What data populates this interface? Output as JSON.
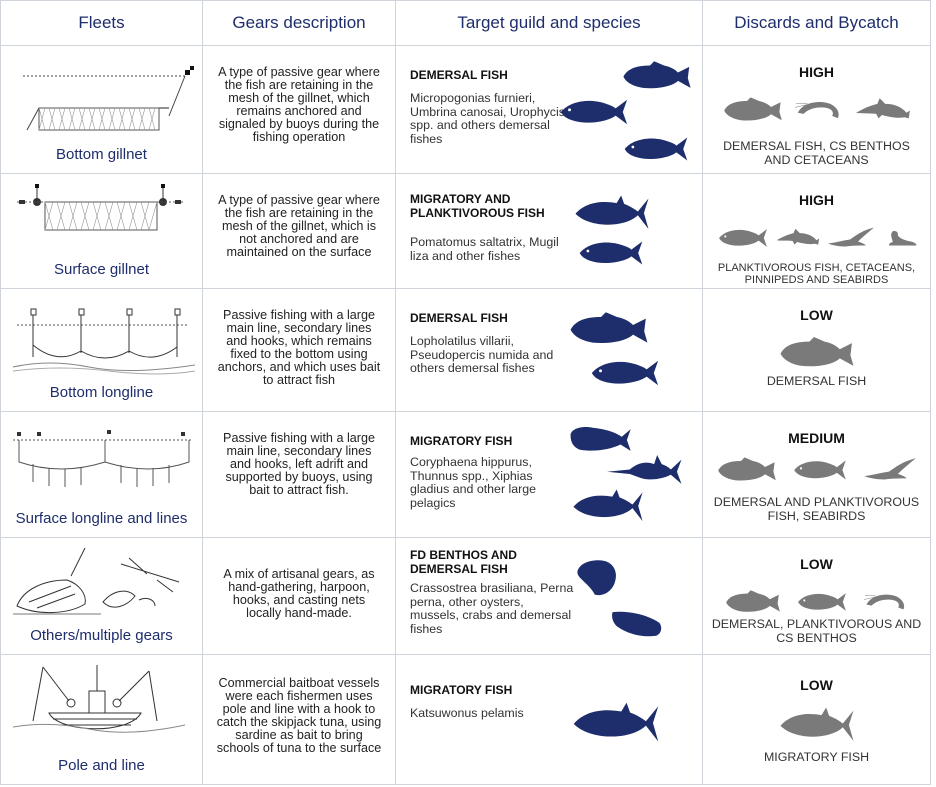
{
  "headers": [
    "Fleets",
    "Gears description",
    "Target guild and species",
    "Discards and Bycatch"
  ],
  "colors": {
    "header_text": "#1e2d6b",
    "target_fish": "#1e2d6b",
    "bycatch_icon": "#7a7a7a",
    "grid": "#cfd3da"
  },
  "rows": [
    {
      "fleet": "Bottom gillnet",
      "fleet_icon": "bottom-gillnet-illustration",
      "gear": "A type of passive gear where the fish are retaining in the mesh of the gillnet, which remains anchored and signaled by buoys during the fishing operation",
      "guild": "DEMERSAL FISH",
      "species": "Micropogonias furnieri, Umbrina canosai, Urophycis spp. and others demersal fishes",
      "level": "HIGH",
      "bycatch_text": "DEMERSAL FISH, CS BENTHOS AND CETACEANS",
      "bycatch_icons": [
        "grouper-icon",
        "shrimp-icon",
        "dolphin-icon"
      ]
    },
    {
      "fleet": "Surface gillnet",
      "fleet_icon": "surface-gillnet-illustration",
      "gear": "A type of passive gear where the fish are retaining in the mesh of the gillnet, which is not anchored and are maintained on the surface",
      "guild": "MIGRATORY AND PLANKTIVOROUS FISH",
      "species": "Pomatomus saltatrix, Mugil liza and other fishes",
      "level": "HIGH",
      "bycatch_text": "PLANKTIVOROUS FISH, CETACEANS, PINNIPEDS AND SEABIRDS",
      "bycatch_icons": [
        "fish-icon",
        "dolphin-icon",
        "seabird-icon",
        "sea-lion-icon"
      ]
    },
    {
      "fleet": "Bottom longline",
      "fleet_icon": "bottom-longline-illustration",
      "gear": "Passive fishing with a large main line, secondary lines and hooks, which remains fixed to the bottom using anchors, and which uses bait to attract fish",
      "guild": "DEMERSAL FISH",
      "species": "Lopholatilus villarii, Pseudopercis numida and others demersal fishes",
      "level": "LOW",
      "bycatch_text": "DEMERSAL FISH",
      "bycatch_icons": [
        "grouper-icon"
      ]
    },
    {
      "fleet": "Surface longline and lines",
      "fleet_icon": "surface-longline-illustration",
      "gear": "Passive fishing with a large main line, secondary lines and hooks, left adrift and supported by buoys, using bait to attract fish.",
      "guild": "MIGRATORY FISH",
      "species": "Coryphaena hippurus, Thunnus spp., Xiphias gladius and other large pelagics",
      "level": "MEDIUM",
      "bycatch_text": "DEMERSAL AND PLANKTIVOROUS FISH, SEABIRDS",
      "bycatch_icons": [
        "grouper-icon",
        "fish-icon",
        "seabird-icon"
      ]
    },
    {
      "fleet": "Others/multiple gears",
      "fleet_icon": "artisanal-gears-illustration",
      "gear": "A mix of artisanal gears, as hand-gathering, harpoon, hooks,  and casting nets locally hand-made.",
      "guild": "FD BENTHOS AND DEMERSAL FISH",
      "species": "Crassostrea brasiliana, Perna perna, other oysters, mussels, crabs and demersal fishes",
      "level": "LOW",
      "bycatch_text": "DEMERSAL, PLANKTIVOROUS AND CS BENTHOS",
      "bycatch_icons": [
        "grouper-icon",
        "fish-icon",
        "shrimp-icon"
      ]
    },
    {
      "fleet": "Pole and line",
      "fleet_icon": "pole-and-line-illustration",
      "gear": "Commercial baitboat vessels were each fishermen uses pole and line with a hook to catch the skipjack tuna, using sardine as bait to bring schools of tuna to the surface",
      "guild": "MIGRATORY FISH",
      "species": "Katsuwonus pelamis",
      "level": "LOW",
      "bycatch_text": "MIGRATORY FISH",
      "bycatch_icons": [
        "tuna-icon"
      ]
    }
  ]
}
